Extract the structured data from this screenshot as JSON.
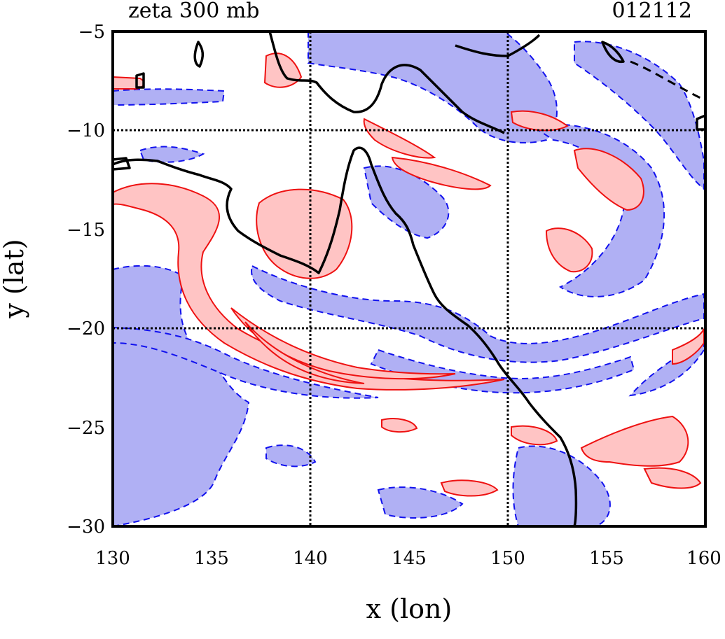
{
  "chart_data": {
    "type": "contour",
    "title_left": "zeta 300 mb",
    "title_right": "012112",
    "xlabel": "x (lon)",
    "ylabel": "y (lat)",
    "xlim": [
      130,
      160
    ],
    "ylim": [
      -30,
      -5
    ],
    "xticks": [
      "130",
      "135",
      "140",
      "145",
      "150",
      "155",
      "160"
    ],
    "yticks": [
      "−5",
      "−10",
      "−15",
      "−20",
      "−25",
      "−30"
    ],
    "grid": {
      "x": [
        140,
        150
      ],
      "y": [
        -10,
        -20
      ],
      "style": "dotted"
    },
    "positive_contour": {
      "line": "#ee1111",
      "fill": "#ffc4c4",
      "dash": "solid"
    },
    "negative_contour": {
      "line": "#1111ee",
      "fill": "#b0b0f4",
      "dash": "dashed"
    },
    "coastline": {
      "color": "#000000"
    }
  }
}
